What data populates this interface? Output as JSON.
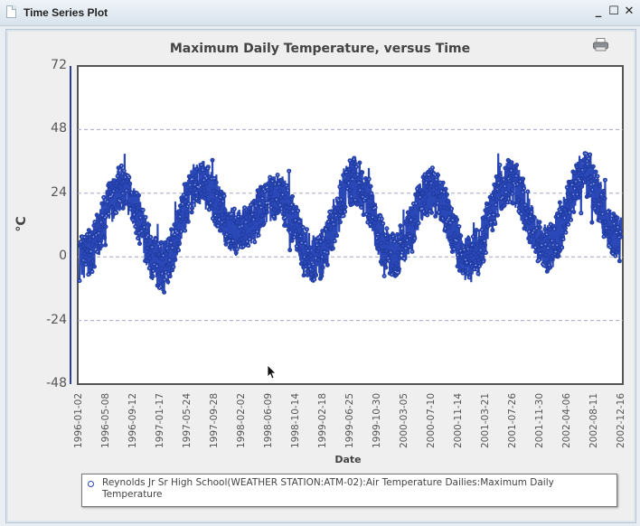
{
  "window": {
    "title": "Time Series Plot",
    "controls": {
      "minimize": "_",
      "maximize": "☐",
      "close": "✕"
    }
  },
  "toolbar": {
    "print_icon": "printer-icon"
  },
  "colors": {
    "series": "#2a48b8",
    "grid": "#a6a6c8",
    "frame": "#555555",
    "axis": "#2b3f9a"
  },
  "chart_data": {
    "type": "line",
    "title": "Maximum Daily Temperature, versus Time",
    "xlabel": "Date",
    "ylabel": "°C",
    "ylim": [
      -48,
      72
    ],
    "yticks": [
      72,
      48,
      24,
      0,
      -24,
      -48
    ],
    "grid": "horizontal dashed",
    "xticks": [
      "1996-01-02",
      "1996-05-08",
      "1996-09-12",
      "1997-01-17",
      "1997-05-24",
      "1997-09-28",
      "1998-02-02",
      "1998-06-09",
      "1998-10-14",
      "1999-02-18",
      "1999-06-25",
      "1999-10-30",
      "2000-03-05",
      "2000-07-10",
      "2000-11-14",
      "2001-03-21",
      "2001-07-26",
      "2001-11-30",
      "2002-04-06",
      "2002-08-11",
      "2002-12-16"
    ],
    "series": [
      {
        "name": "Reynolds Jr Sr High School(WEATHER STATION:ATM-02):Air Temperature Dailies:Maximum Daily Temperature",
        "description": "Daily max temperature 1996-01-02 to ~2003-01; seasonal cycle with summer peaks ~28-38°C and winter lows ~-5 to -15°C",
        "seasonal_extremes": [
          {
            "period": "1996-winter",
            "min": -12
          },
          {
            "period": "1996-summer",
            "max": 34
          },
          {
            "period": "1997-winter",
            "min": -15
          },
          {
            "period": "1997-summer",
            "max": 36
          },
          {
            "period": "1998-winter",
            "min": -3
          },
          {
            "period": "1998-summer",
            "max": 31
          },
          {
            "period": "1999-winter",
            "min": -13
          },
          {
            "period": "1999-summer",
            "max": 37
          },
          {
            "period": "2000-winter",
            "min": -11
          },
          {
            "period": "2000-summer",
            "max": 33
          },
          {
            "period": "2001-winter",
            "min": -13
          },
          {
            "period": "2001-summer",
            "max": 37
          },
          {
            "period": "2002-winter",
            "min": -9
          },
          {
            "period": "2002-summer",
            "max": 39
          },
          {
            "period": "2002-12",
            "min": -5
          }
        ]
      }
    ]
  },
  "legend": {
    "items": [
      {
        "label": "Reynolds Jr Sr High School(WEATHER STATION:ATM-02):Air Temperature Dailies:Maximum Daily Temperature"
      }
    ]
  }
}
